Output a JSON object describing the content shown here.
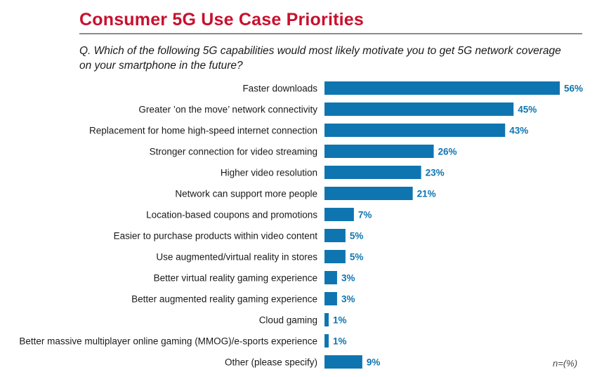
{
  "title": "Consumer 5G Use Case Priorities",
  "question": "Q.  Which of the following 5G capabilities would most likely motivate you to get 5G network coverage on your smartphone in the future?",
  "footnote": "n=(%)",
  "colors": {
    "title": "#c8102e",
    "bar": "#0f75b1",
    "value_label": "#0f75b1",
    "category_label": "#1a1a1a"
  },
  "chart_data": {
    "type": "bar",
    "orientation": "horizontal",
    "categories": [
      "Faster downloads",
      "Greater ’on the move’ network connectivity",
      "Replacement for home high-speed internet connection",
      "Stronger connection for video streaming",
      "Higher video resolution",
      "Network can support more people",
      "Location-based coupons and promotions",
      "Easier to purchase products within video content",
      "Use augmented/virtual reality in stores",
      "Better virtual reality gaming experience",
      "Better augmented reality gaming experience",
      "Cloud gaming",
      "Better massive multiplayer online gaming (MMOG)/e-sports experience",
      "Other (please specify)"
    ],
    "values": [
      56,
      45,
      43,
      26,
      23,
      21,
      7,
      5,
      5,
      3,
      3,
      1,
      1,
      9
    ],
    "value_labels": [
      "56%",
      "45%",
      "43%",
      "26%",
      "23%",
      "21%",
      "7%",
      "5%",
      "5%",
      "3%",
      "3%",
      "1%",
      "1%",
      "9%"
    ],
    "xlim": [
      0,
      56
    ],
    "grid": false,
    "legend": "none"
  }
}
